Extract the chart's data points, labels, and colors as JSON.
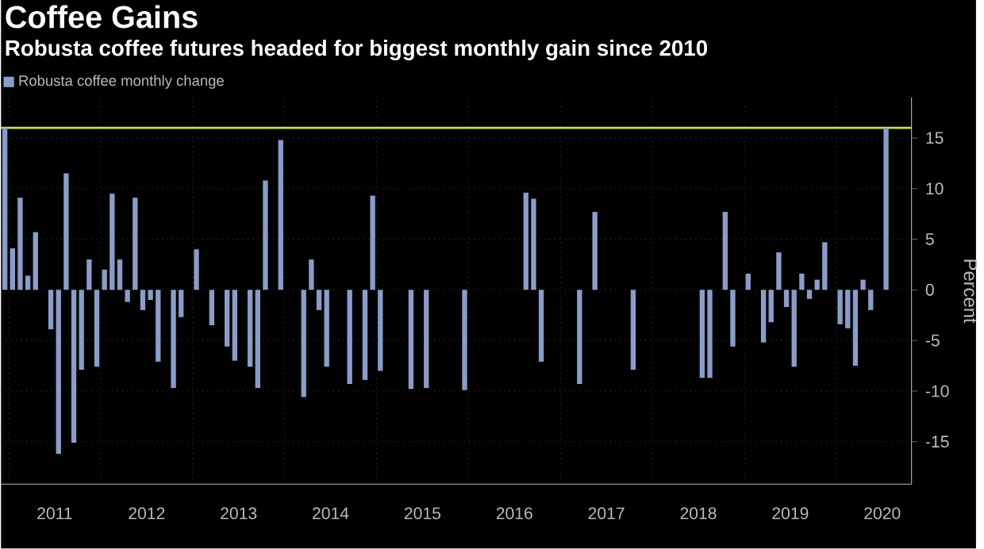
{
  "chart_data": {
    "type": "bar",
    "title": "Coffee Gains",
    "subtitle": "Robusta coffee futures headed for biggest monthly gain since 2010",
    "ylabel": "Percent",
    "x": [
      "2010-12",
      "2011-01",
      "2011-02",
      "2011-03",
      "2011-04",
      "2011-05",
      "2011-06",
      "2011-07",
      "2011-08",
      "2011-09",
      "2011-10",
      "2011-11",
      "2011-12",
      "2012-01",
      "2012-02",
      "2012-03",
      "2012-04",
      "2012-05",
      "2012-06",
      "2012-07",
      "2012-08",
      "2012-09",
      "2012-10",
      "2012-11",
      "2012-12",
      "2013-01",
      "2013-02",
      "2013-03",
      "2013-04",
      "2013-05",
      "2013-06",
      "2013-07",
      "2013-08",
      "2013-09",
      "2013-10",
      "2013-11",
      "2013-12",
      "2014-01",
      "2014-02",
      "2014-03",
      "2014-04",
      "2014-05",
      "2014-06",
      "2014-07",
      "2014-08",
      "2014-09",
      "2014-10",
      "2014-11",
      "2014-12",
      "2015-01",
      "2015-02",
      "2015-03",
      "2015-04",
      "2015-05",
      "2015-06",
      "2015-07",
      "2015-08",
      "2015-09",
      "2015-10",
      "2015-11",
      "2015-12",
      "2016-01",
      "2016-02",
      "2016-03",
      "2016-04",
      "2016-05",
      "2016-06",
      "2016-07",
      "2016-08",
      "2016-09",
      "2016-10",
      "2016-11",
      "2016-12",
      "2017-01",
      "2017-02",
      "2017-03",
      "2017-04",
      "2017-05",
      "2017-06",
      "2017-07",
      "2017-08",
      "2017-09",
      "2017-10",
      "2017-11",
      "2017-12",
      "2018-01",
      "2018-02",
      "2018-03",
      "2018-04",
      "2018-05",
      "2018-06",
      "2018-07",
      "2018-08",
      "2018-09",
      "2018-10",
      "2018-11",
      "2018-12",
      "2019-01",
      "2019-02",
      "2019-03",
      "2019-04",
      "2019-05",
      "2019-06",
      "2019-07",
      "2019-08",
      "2019-09",
      "2019-10",
      "2019-11",
      "2019-12",
      "2020-01",
      "2020-02",
      "2020-03",
      "2020-04",
      "2020-05",
      "2020-06",
      "2020-07"
    ],
    "series": [
      {
        "name": "Robusta coffee monthly change",
        "color": "#8a9cc8",
        "values": [
          16.0,
          4.1,
          9.1,
          1.4,
          5.7,
          null,
          -3.9,
          -16.2,
          11.5,
          -15.1,
          -7.9,
          3,
          -7.6,
          2,
          9.5,
          3,
          -1.2,
          9.1,
          -2,
          -1,
          -7.1,
          null,
          -9.7,
          -2.7,
          null,
          4,
          null,
          -3.5,
          null,
          -5.6,
          -7,
          null,
          -7.6,
          -9.7,
          10.8,
          null,
          14.8,
          null,
          null,
          -10.6,
          3,
          -2,
          -7.6,
          null,
          null,
          -9.3,
          null,
          -8.9,
          9.3,
          -8,
          null,
          null,
          null,
          -9.8,
          null,
          -9.7,
          null,
          null,
          null,
          null,
          -9.9,
          null,
          null,
          null,
          null,
          null,
          null,
          null,
          9.6,
          9,
          -7.1,
          null,
          null,
          null,
          null,
          -9.3,
          null,
          7.7,
          null,
          null,
          null,
          null,
          -7.9,
          null,
          null,
          null,
          null,
          null,
          null,
          null,
          null,
          -8.7,
          -8.7,
          null,
          7.7,
          -5.6,
          null,
          1.6,
          null,
          -5.2,
          -3.2,
          3.7,
          -1.7,
          -7.6,
          1.6,
          -0.9,
          1,
          4.7,
          null,
          -3.4,
          -3.8,
          -7.5,
          1,
          -2,
          null,
          16
        ]
      }
    ],
    "xlim": [
      "2010-12-01",
      "2020-10-26"
    ],
    "xticks": [
      {
        "value": "2011",
        "label": null
      },
      {
        "value": "2012",
        "label": null
      },
      {
        "value": "2013",
        "label": null
      },
      {
        "value": "2014",
        "label": null
      },
      {
        "value": "2015",
        "label": null
      },
      {
        "value": "2016",
        "label": null
      },
      {
        "value": "2017",
        "label": null
      },
      {
        "value": "2018",
        "label": null
      },
      {
        "value": "2019",
        "label": null
      },
      {
        "value": "2020",
        "label": null
      },
      {
        "value": "2011-07",
        "label": "2011"
      },
      {
        "value": "2012-07",
        "label": "2012"
      },
      {
        "value": "2013-07",
        "label": "2013"
      },
      {
        "value": "2014-07",
        "label": "2014"
      },
      {
        "value": "2015-07",
        "label": "2015"
      },
      {
        "value": "2016-07",
        "label": "2016"
      },
      {
        "value": "2017-07",
        "label": "2017"
      },
      {
        "value": "2018-07",
        "label": "2018"
      },
      {
        "value": "2019-07",
        "label": "2019"
      },
      {
        "value": "2020-07",
        "label": "2020"
      }
    ],
    "ylim": [
      -19.2,
      19
    ],
    "yticks": [
      -15,
      -10,
      -5,
      0,
      5,
      10,
      15
    ],
    "ref_lines": [
      {
        "axis": "y",
        "value": 16,
        "color": "#c8e04a"
      }
    ],
    "grid": true,
    "legend": "top left"
  }
}
